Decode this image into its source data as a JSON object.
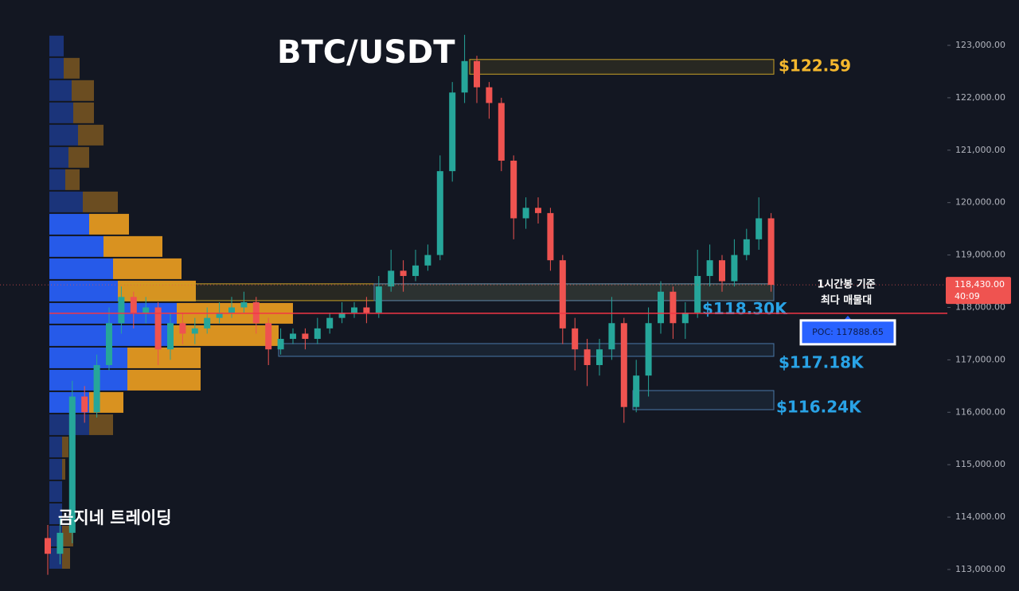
{
  "chart_data": {
    "type": "candlestick",
    "title": "BTC/USDT",
    "watermark": "곰지네 트레이딩",
    "ylim": [
      112590,
      123865
    ],
    "yticks": [
      {
        "value": 113000,
        "label": "113,000.00"
      },
      {
        "value": 114000,
        "label": "114,000.00"
      },
      {
        "value": 115000,
        "label": "115,000.00"
      },
      {
        "value": 116000,
        "label": "116,000.00"
      },
      {
        "value": 117000,
        "label": "117,000.00"
      },
      {
        "value": 118000,
        "label": "118,000.00"
      },
      {
        "value": 119000,
        "label": "119,000.00"
      },
      {
        "value": 120000,
        "label": "120,000.00"
      },
      {
        "value": 121000,
        "label": "121,000.00"
      },
      {
        "value": 122000,
        "label": "122,000.00"
      },
      {
        "value": 123000,
        "label": "123,000.00"
      }
    ],
    "up_color": "#26a69a",
    "down_color": "#ef5350",
    "open": [
      113600,
      113300,
      113700,
      116300,
      116000,
      116900,
      117700,
      118200,
      117900,
      118000,
      117200,
      117700,
      117500,
      117600,
      117800,
      117900,
      118000,
      118100,
      117700,
      117200,
      117400,
      117500,
      117400,
      117600,
      117800,
      117900,
      118000,
      117900,
      118400,
      118700,
      118600,
      118800,
      119000,
      120600,
      122100,
      122700,
      122200,
      121900,
      120800,
      119700,
      119900,
      119800,
      118900,
      117600,
      117200,
      116900,
      117200,
      117700,
      116100,
      116700,
      117700,
      118300,
      117700,
      117900,
      118600,
      118900,
      118500,
      119000,
      119300,
      119700
    ],
    "high": [
      113850,
      114000,
      116600,
      116500,
      117100,
      118000,
      118400,
      118300,
      118200,
      118100,
      117900,
      117900,
      117800,
      118000,
      118100,
      118200,
      118300,
      118200,
      117800,
      117600,
      117600,
      117600,
      117800,
      117900,
      118100,
      118100,
      118200,
      118600,
      119100,
      118900,
      119100,
      119200,
      120900,
      122300,
      123200,
      122800,
      122300,
      122000,
      120900,
      120100,
      120100,
      119900,
      119000,
      117800,
      117400,
      117400,
      118200,
      117800,
      117000,
      118000,
      118500,
      118400,
      118100,
      119100,
      119200,
      119000,
      119300,
      119500,
      120100,
      119800
    ],
    "low": [
      112900,
      113100,
      113500,
      115800,
      115900,
      116800,
      117500,
      117600,
      117700,
      116900,
      117000,
      117300,
      117300,
      117500,
      117700,
      117800,
      117900,
      117500,
      116900,
      117100,
      117300,
      117200,
      117300,
      117500,
      117700,
      117800,
      117700,
      117800,
      118300,
      118300,
      118500,
      118700,
      118900,
      120400,
      121900,
      121900,
      121600,
      120600,
      119300,
      119500,
      119600,
      118700,
      117300,
      116800,
      116500,
      116700,
      117000,
      115800,
      116000,
      116300,
      117500,
      117400,
      117400,
      117800,
      118400,
      118300,
      118400,
      118900,
      119100,
      118300
    ],
    "close": [
      113300,
      113700,
      116300,
      116000,
      116900,
      117700,
      118200,
      117900,
      118000,
      117200,
      117700,
      117500,
      117600,
      117800,
      117900,
      118000,
      118100,
      117700,
      117200,
      117400,
      117500,
      117400,
      117600,
      117800,
      117900,
      118000,
      117900,
      118400,
      118700,
      118600,
      118800,
      119000,
      120600,
      122100,
      122700,
      122200,
      121900,
      120800,
      119700,
      119900,
      119800,
      118900,
      117600,
      117200,
      116900,
      117200,
      117700,
      116100,
      116700,
      117700,
      118300,
      117700,
      117900,
      118600,
      118900,
      118500,
      119000,
      119300,
      119700,
      118430
    ],
    "volume_profile": {
      "bins": [
        113000,
        113425,
        113850,
        114275,
        114700,
        115125,
        115550,
        115975,
        116400,
        116825,
        117250,
        117675,
        118100,
        118525,
        118950,
        119375,
        119800,
        120225,
        120650,
        121075,
        121500,
        121925,
        122350,
        122775,
        123200
      ],
      "buy": [
        16,
        16,
        16,
        16,
        16,
        16,
        50,
        50,
        98,
        98,
        148,
        160,
        86,
        80,
        68,
        50,
        42,
        20,
        24,
        36,
        30,
        28,
        18,
        18
      ],
      "sell": [
        10,
        14,
        0,
        0,
        4,
        8,
        30,
        43,
        92,
        92,
        140,
        146,
        98,
        86,
        74,
        50,
        44,
        18,
        26,
        32,
        26,
        28,
        20,
        0
      ],
      "buy_color": "#2962ff",
      "sell_color": "#f0a020",
      "value_area": [
        115975,
        119800
      ]
    },
    "zones": [
      {
        "low": 122450,
        "high": 122730,
        "color": "#c9a227",
        "label": "$122.59"
      },
      {
        "low": 118130,
        "high": 118450,
        "color": "#c9a227"
      },
      {
        "low": 118130,
        "high": 118450,
        "color": "#4a78a8",
        "label": "$118.30K"
      },
      {
        "low": 117067,
        "high": 117310,
        "color": "#4a78a8",
        "label": "$117.18K"
      },
      {
        "low": 116050,
        "high": 116414,
        "color": "#4a78a8",
        "label": "$116.24K"
      }
    ],
    "poc": {
      "value": 117888.65,
      "label": "POC: 117888.65",
      "color": "#f23645"
    },
    "annotation": [
      "1시간봉 기준",
      "최다 매물대"
    ],
    "last_price": {
      "value": 118430,
      "label": "118,430.00",
      "countdown": "40:09"
    }
  }
}
